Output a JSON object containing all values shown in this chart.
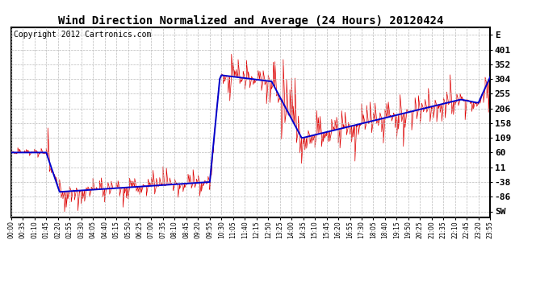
{
  "title": "Wind Direction Normalized and Average (24 Hours) 20120424",
  "copyright": "Copyright 2012 Cartronics.com",
  "yticks_right": [
    "E",
    "401",
    "352",
    "304",
    "255",
    "206",
    "158",
    "109",
    "60",
    "11",
    "-38",
    "-86",
    "SW"
  ],
  "ytick_values": [
    450,
    401,
    352,
    304,
    255,
    206,
    158,
    109,
    60,
    11,
    -38,
    -86,
    -135
  ],
  "ylim": [
    -155,
    475
  ],
  "background_color": "#ffffff",
  "plot_bg_color": "#ffffff",
  "grid_color": "#bbbbbb",
  "line_color_raw": "#dd0000",
  "line_color_avg": "#0000cc",
  "title_fontsize": 10,
  "copyright_fontsize": 7
}
